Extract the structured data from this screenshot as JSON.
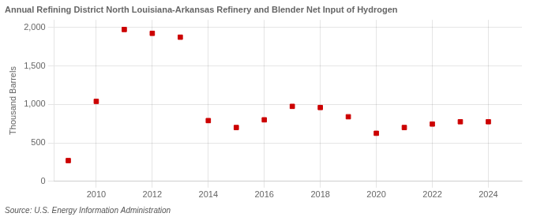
{
  "chart_data": {
    "type": "scatter",
    "title": "Annual Refining District North Louisiana-Arkansas Refinery and Blender Net Input of Hydrogen",
    "ylabel": "Thousand Barrels",
    "annotation": "Source: U.S. Energy Information Administration",
    "x": [
      2009,
      2010,
      2011,
      2012,
      2013,
      2014,
      2015,
      2016,
      2017,
      2018,
      2019,
      2020,
      2021,
      2022,
      2023,
      2024
    ],
    "values": [
      270,
      1040,
      1975,
      1925,
      1875,
      790,
      700,
      800,
      975,
      960,
      840,
      625,
      700,
      745,
      775,
      775
    ],
    "color": "#cc0000",
    "marker": "square",
    "xlim": [
      2008.5,
      2025.2
    ],
    "xticks": [
      2010,
      2012,
      2014,
      2016,
      2018,
      2020,
      2022,
      2024
    ],
    "ylim": [
      0,
      2100
    ],
    "yticks": [
      0,
      500,
      {
        "value": 1000,
        "label": "1,000"
      },
      {
        "value": 1500,
        "label": "1,500"
      },
      {
        "value": 2000,
        "label": "2,000"
      }
    ],
    "grid": true
  }
}
